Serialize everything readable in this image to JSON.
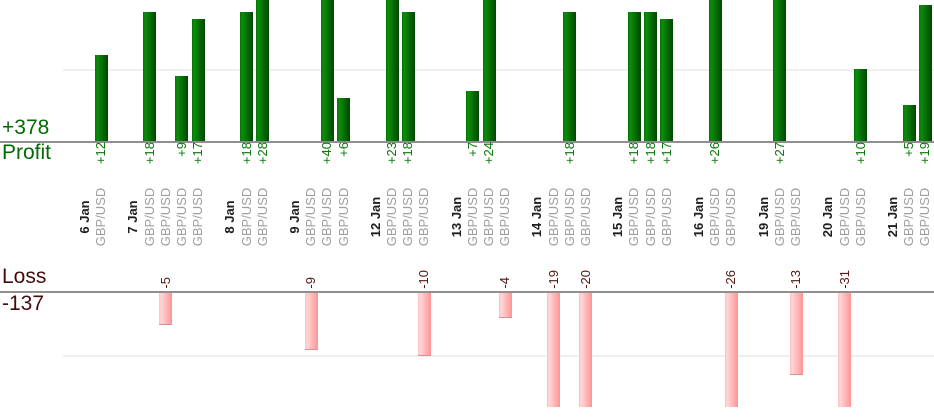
{
  "chart_data": {
    "type": "bar",
    "orientation": "vertical",
    "description_visible_only": "profit bars above profit axis, loss bars below loss axis, grouped by date",
    "profit": {
      "axis_label": "Profit",
      "total_label": "+378",
      "total": 378
    },
    "loss": {
      "axis_label": "Loss",
      "total_label": "-137",
      "total": -137
    },
    "gridlines": {
      "profit_at_value": 10,
      "loss_at_value": -10,
      "grid_on": true
    },
    "groups": [
      {
        "date": "6 Jan",
        "trades": [
          {
            "value": 12,
            "label": "+12",
            "pair": "GBP/USD"
          }
        ]
      },
      {
        "date": "7 Jan",
        "trades": [
          {
            "value": 18,
            "label": "+18",
            "pair": "GBP/USD"
          },
          {
            "value": -5,
            "label": "-5",
            "pair": "GBP/USD"
          },
          {
            "value": 9,
            "label": "+9",
            "pair": "GBP/USD"
          },
          {
            "value": 17,
            "label": "+17",
            "pair": "GBP/USD"
          }
        ]
      },
      {
        "date": "8 Jan",
        "trades": [
          {
            "value": 18,
            "label": "+18",
            "pair": "GBP/USD"
          },
          {
            "value": 28,
            "label": "+28",
            "pair": "GBP/USD"
          }
        ]
      },
      {
        "date": "9 Jan",
        "trades": [
          {
            "value": -9,
            "label": "-9",
            "pair": "GBP/USD"
          },
          {
            "value": 40,
            "label": "+40",
            "pair": "GBP/USD"
          },
          {
            "value": 6,
            "label": "+6",
            "pair": "GBP/USD"
          }
        ]
      },
      {
        "date": "12 Jan",
        "trades": [
          {
            "value": 23,
            "label": "+23",
            "pair": "GBP/USD"
          },
          {
            "value": 18,
            "label": "+18",
            "pair": "GBP/USD"
          },
          {
            "value": -10,
            "label": "-10",
            "pair": "GBP/USD"
          }
        ]
      },
      {
        "date": "13 Jan",
        "trades": [
          {
            "value": 7,
            "label": "+7",
            "pair": "GBP/USD"
          },
          {
            "value": 24,
            "label": "+24",
            "pair": "GBP/USD"
          },
          {
            "value": -4,
            "label": "-4",
            "pair": "GBP/USD"
          }
        ]
      },
      {
        "date": "14 Jan",
        "trades": [
          {
            "value": -19,
            "label": "-19",
            "pair": "GBP/USD"
          },
          {
            "value": 18,
            "label": "+18",
            "pair": "GBP/USD"
          },
          {
            "value": -20,
            "label": "-20",
            "pair": "GBP/USD"
          }
        ]
      },
      {
        "date": "15 Jan",
        "trades": [
          {
            "value": 18,
            "label": "+18",
            "pair": "GBP/USD"
          },
          {
            "value": 18,
            "label": "+18",
            "pair": "GBP/USD"
          },
          {
            "value": 17,
            "label": "+17",
            "pair": "GBP/USD"
          }
        ]
      },
      {
        "date": "16 Jan",
        "trades": [
          {
            "value": 26,
            "label": "+26",
            "pair": "GBP/USD"
          },
          {
            "value": -26,
            "label": "-26",
            "pair": "GBP/USD"
          }
        ]
      },
      {
        "date": "19 Jan",
        "trades": [
          {
            "value": 27,
            "label": "+27",
            "pair": "GBP/USD"
          },
          {
            "value": -13,
            "label": "-13",
            "pair": "GBP/USD"
          }
        ]
      },
      {
        "date": "20 Jan",
        "trades": [
          {
            "value": -31,
            "label": "-31",
            "pair": "GBP/USD"
          },
          {
            "value": 10,
            "label": "+10",
            "pair": "GBP/USD"
          }
        ]
      },
      {
        "date": "21 Jan",
        "trades": [
          {
            "value": 5,
            "label": "+5",
            "pair": "GBP/USD"
          },
          {
            "value": 19,
            "label": "+19",
            "pair": "GBP/USD"
          }
        ]
      }
    ],
    "colors": {
      "profit_text": "#046a04",
      "profit_value_text": "#0a770a",
      "loss_text": "#450c0c",
      "loss_value_text": "#561414",
      "date_text": "#1f1f1f",
      "pair_text": "#9e9e9e",
      "axis_line": "#8f8f8f",
      "gridline": "#efefef",
      "profit_bar_edge": "#067106",
      "profit_bar_light": "#0b8d0b",
      "profit_bar_dark": "#014701",
      "loss_bar_edge": "#ffc0c0",
      "loss_bar_light": "#ffd6d6",
      "loss_bar_dark": "#ff9494"
    }
  }
}
